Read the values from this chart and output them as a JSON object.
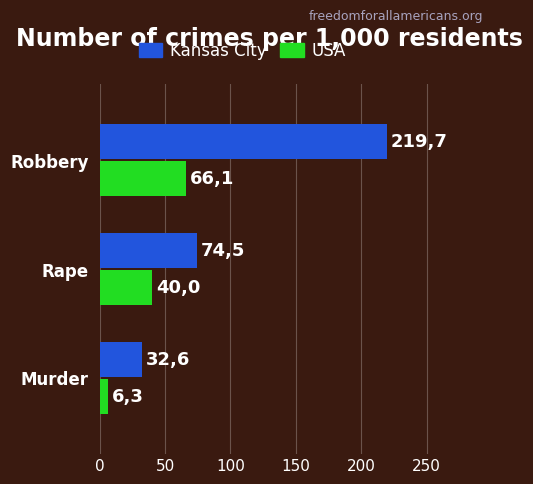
{
  "title": "Number of crimes per 1,000 residents",
  "watermark": "freedomforallamericans.org",
  "categories": [
    "Robbery",
    "Rape",
    "Murder"
  ],
  "kansas_city": [
    219.7,
    74.5,
    32.6
  ],
  "usa": [
    66.1,
    40.0,
    6.3
  ],
  "kansas_color": "#2255dd",
  "usa_color": "#22dd22",
  "text_color": "#ffffff",
  "bar_height": 0.32,
  "xlim": [
    0,
    260
  ],
  "xticks": [
    0,
    50,
    100,
    150,
    200,
    250
  ],
  "legend_kansas": "Kansas City",
  "legend_usa": "USA",
  "title_fontsize": 17,
  "label_fontsize": 12,
  "tick_fontsize": 11,
  "value_fontsize": 13,
  "watermark_fontsize": 9,
  "bg_color": "#3a1a10"
}
